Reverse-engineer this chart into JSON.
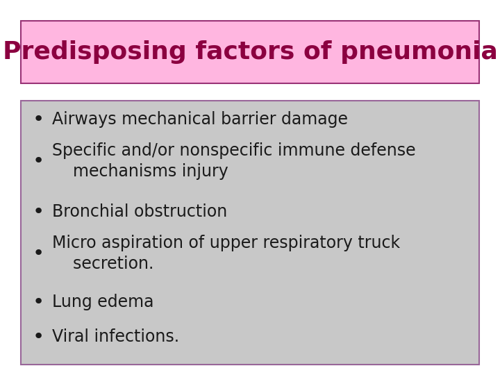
{
  "title": "Predisposing factors of pneumonia",
  "title_color": "#8B0040",
  "title_bg_color": "#FFB6E0",
  "title_border_color": "#993377",
  "title_fontsize": 26,
  "title_font": "Comic Sans MS",
  "body_bg_color": "#C8C8C8",
  "body_border_color": "#996699",
  "bg_color": "#FFFFFF",
  "bullet_color": "#1a1a1a",
  "bullet_fontsize": 17,
  "bullet_font": "Comic Sans MS",
  "bullets": [
    "Airways mechanical barrier damage",
    "Specific and/or nonspecific immune defense\n    mechanisms injury",
    "Bronchial obstruction",
    "Micro aspiration of upper respiratory truck\n    secretion.",
    "Lung edema",
    "Viral infections."
  ],
  "fig_width": 7.2,
  "fig_height": 5.4,
  "dpi": 100
}
